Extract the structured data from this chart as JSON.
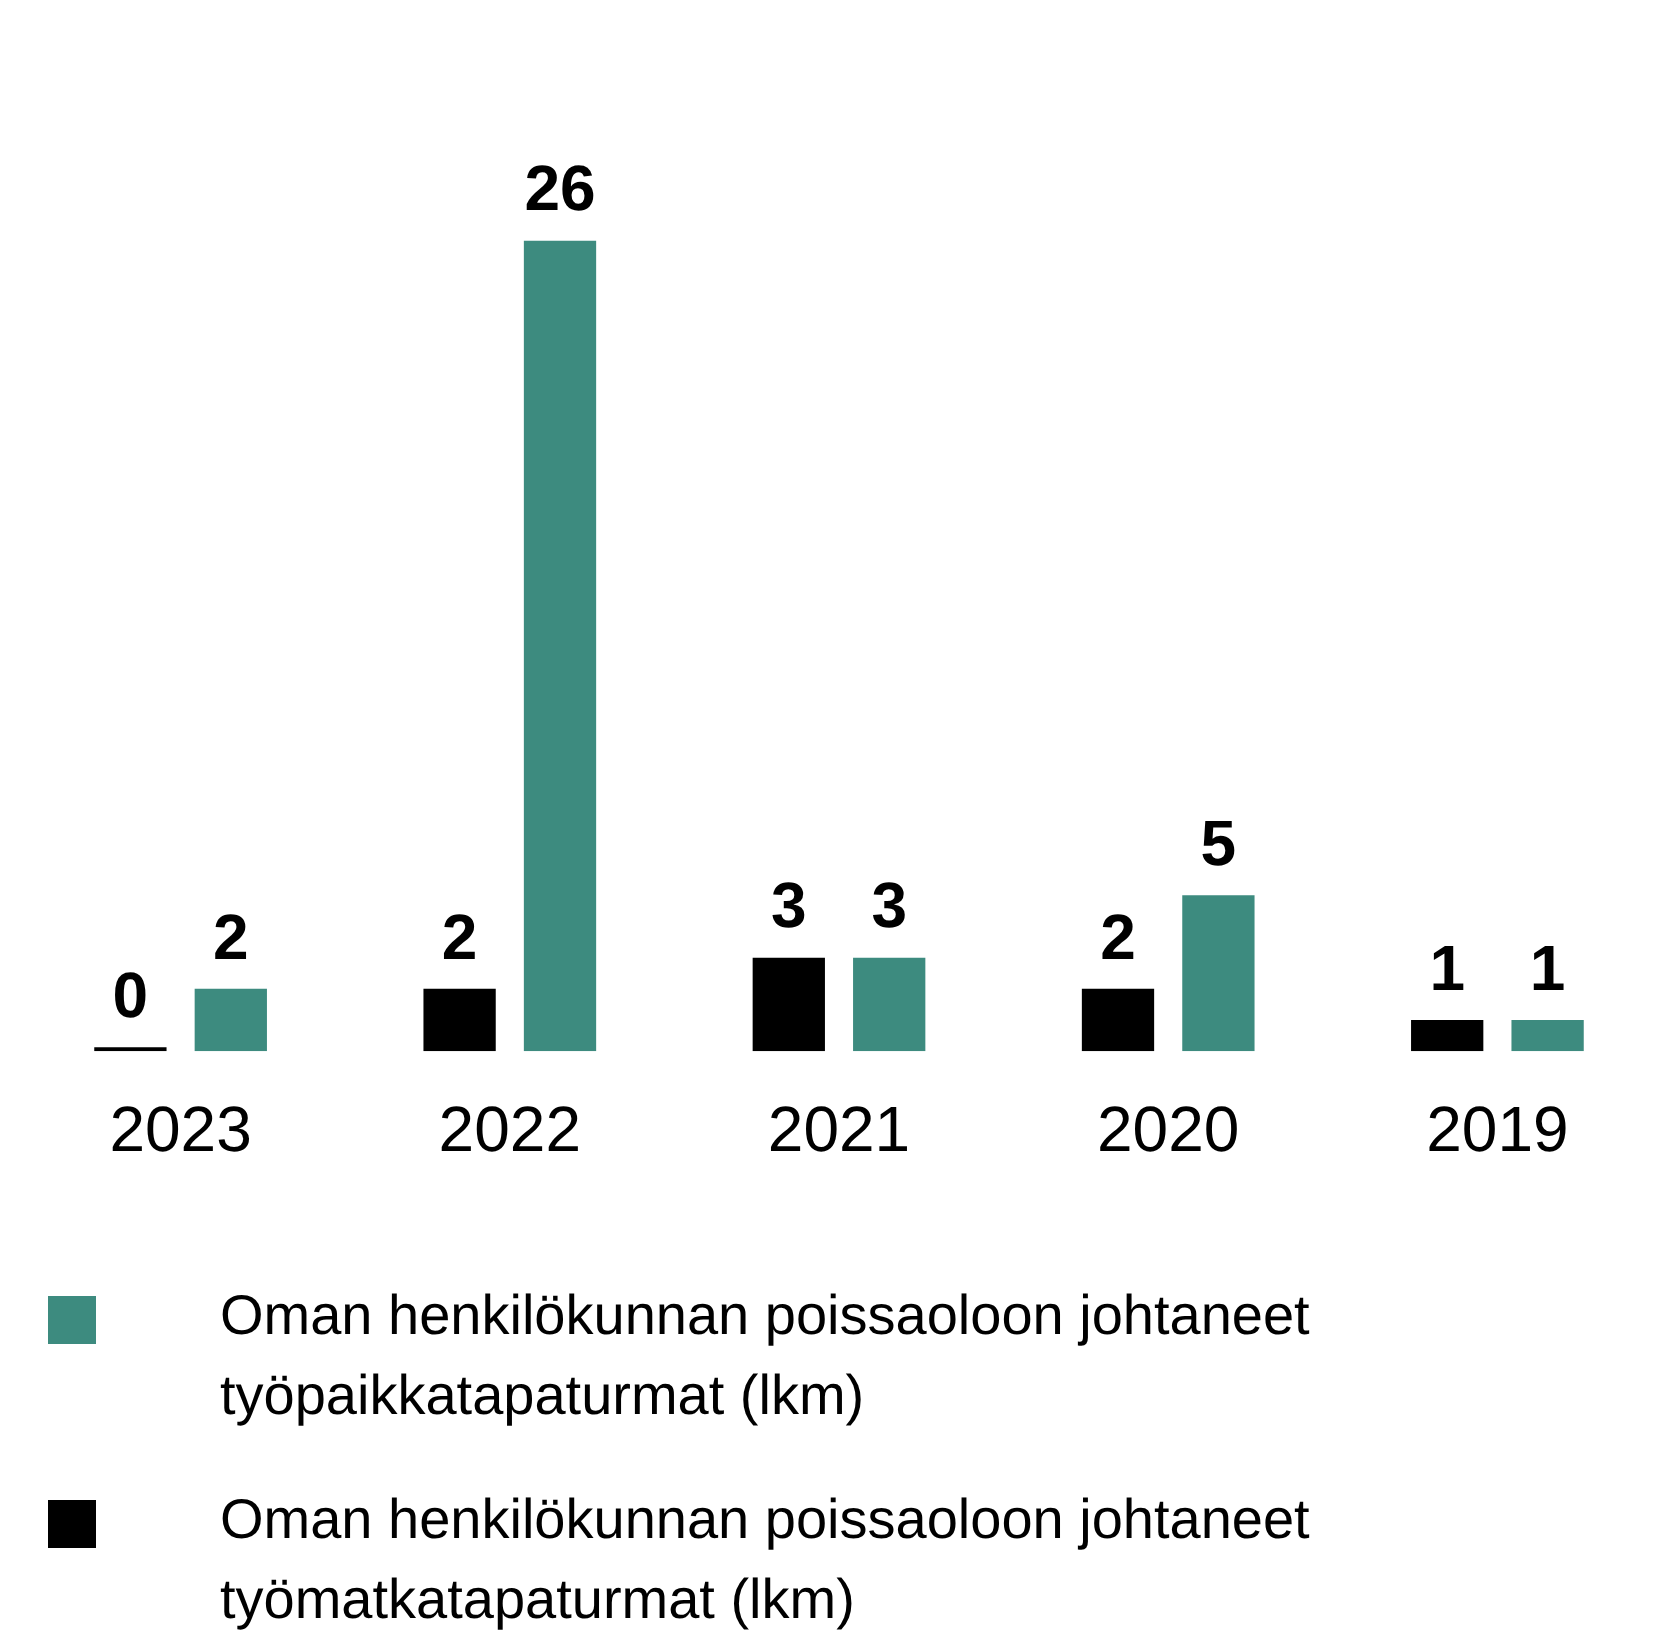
{
  "chart_data": {
    "type": "bar",
    "categories": [
      "2023",
      "2022",
      "2021",
      "2020",
      "2019"
    ],
    "series": [
      {
        "name": "Oman henkilökunnan poissaoloon johtaneet työmatkatapaturmat (lkm)",
        "color": "#000000",
        "values": [
          0,
          2,
          3,
          2,
          1
        ]
      },
      {
        "name": "Oman henkilökunnan poissaoloon johtaneet työpaikkatapaturmat (lkm)",
        "color": "#3d8b7f",
        "values": [
          2,
          26,
          3,
          5,
          1
        ]
      }
    ],
    "data_labels": true,
    "grid": false,
    "legend": "bottom",
    "tick_labels": "x"
  }
}
